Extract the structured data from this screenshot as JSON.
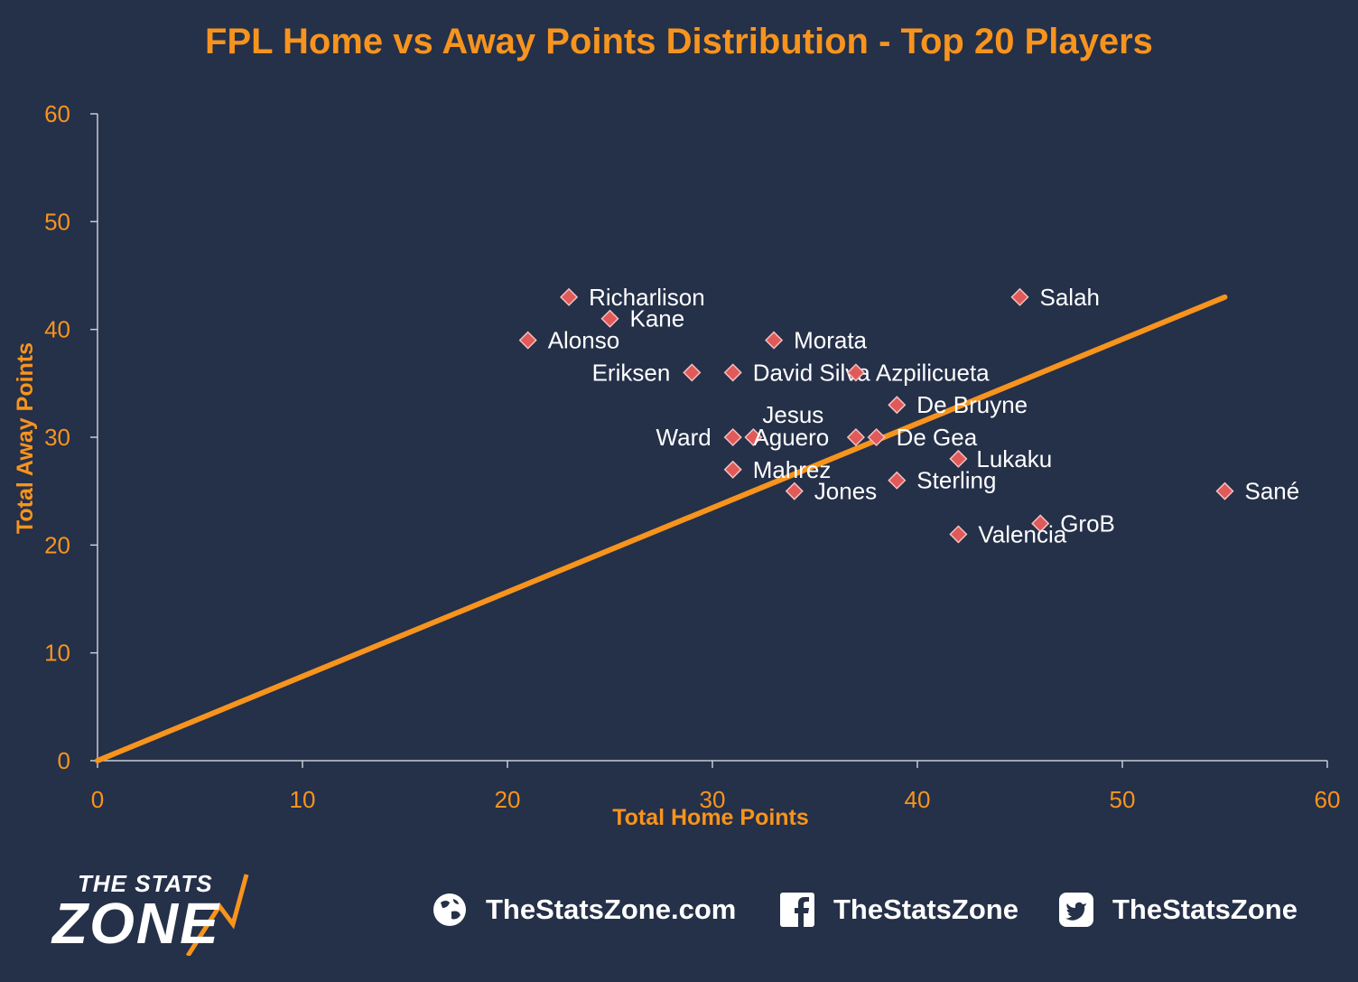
{
  "chart_data": {
    "type": "scatter",
    "title": "FPL Home vs Away Points Distribution - Top 20 Players",
    "xlabel": "Total Home Points",
    "ylabel": "Total Away Points",
    "xlim": [
      0,
      60
    ],
    "ylim": [
      0,
      60
    ],
    "xticks": [
      0,
      10,
      20,
      30,
      40,
      50,
      60
    ],
    "yticks": [
      0,
      10,
      20,
      30,
      40,
      50,
      60
    ],
    "grid": false,
    "colors": {
      "background": "#253049",
      "accent": "#f7941d",
      "marker": "#e05a5a",
      "label": "#ffffff"
    },
    "trendline": {
      "from": [
        0,
        0
      ],
      "to": [
        55,
        43
      ]
    },
    "points": [
      {
        "name": "Richarlison",
        "x": 23,
        "y": 43
      },
      {
        "name": "Kane",
        "x": 25,
        "y": 41
      },
      {
        "name": "Alonso",
        "x": 21,
        "y": 39
      },
      {
        "name": "Morata",
        "x": 33,
        "y": 39
      },
      {
        "name": "Salah",
        "x": 45,
        "y": 43
      },
      {
        "name": "Eriksen",
        "x": 29,
        "y": 36
      },
      {
        "name": "David Silva",
        "x": 31,
        "y": 36
      },
      {
        "name": "Azpilicueta",
        "x": 37,
        "y": 36
      },
      {
        "name": "De Bruyne",
        "x": 39,
        "y": 33
      },
      {
        "name": "Jesus",
        "x": 32,
        "y": 30
      },
      {
        "name": "Ward",
        "x": 31,
        "y": 30
      },
      {
        "name": "Aguero",
        "x": 37,
        "y": 30
      },
      {
        "name": "De Gea",
        "x": 38,
        "y": 30
      },
      {
        "name": "Lukaku",
        "x": 42,
        "y": 28
      },
      {
        "name": "Mahrez",
        "x": 31,
        "y": 27
      },
      {
        "name": "Sterling",
        "x": 39,
        "y": 26
      },
      {
        "name": "Jones",
        "x": 34,
        "y": 25
      },
      {
        "name": "Sané",
        "x": 55,
        "y": 25
      },
      {
        "name": "GroB",
        "x": 46,
        "y": 22
      },
      {
        "name": "Valencia",
        "x": 42,
        "y": 21
      }
    ]
  },
  "footer": {
    "logo_top": "THE STATS",
    "logo_bottom": "ZONE",
    "website": "TheStatsZone.com",
    "facebook": "TheStatsZone",
    "twitter": "TheStatsZone",
    "icons": [
      "globe-icon",
      "facebook-icon",
      "twitter-icon"
    ]
  }
}
